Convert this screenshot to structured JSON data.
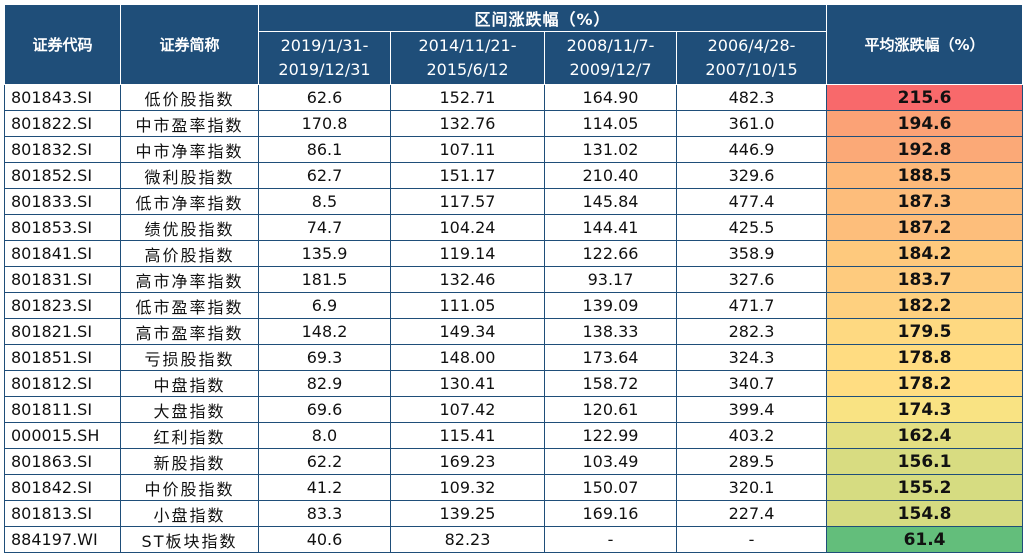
{
  "header": {
    "code": "证券代码",
    "name": "证券简称",
    "group": "区间涨跌幅（%）",
    "avg": "平均涨跌幅（%）",
    "periods": [
      {
        "l1": "2019/1/31-",
        "l2": "2019/12/31"
      },
      {
        "l1": "2014/11/21-",
        "l2": "2015/6/12"
      },
      {
        "l1": "2008/11/7-",
        "l2": "2009/12/7"
      },
      {
        "l1": "2006/4/28-",
        "l2": "2007/10/15"
      }
    ]
  },
  "rows": [
    {
      "code": "801843.SI",
      "name": "低价股指数",
      "p1": "62.6",
      "p2": "152.71",
      "p3": "164.90",
      "p4": "482.3",
      "avg": "215.6",
      "color": "#f8696b"
    },
    {
      "code": "801822.SI",
      "name": "中市盈率指数",
      "p1": "170.8",
      "p2": "132.76",
      "p3": "114.05",
      "p4": "361.0",
      "avg": "194.6",
      "color": "#fba276"
    },
    {
      "code": "801832.SI",
      "name": "中市净率指数",
      "p1": "86.1",
      "p2": "107.11",
      "p3": "131.02",
      "p4": "446.9",
      "avg": "192.8",
      "color": "#fba977"
    },
    {
      "code": "801852.SI",
      "name": "微利股指数",
      "p1": "62.7",
      "p2": "151.17",
      "p3": "210.40",
      "p4": "329.6",
      "avg": "188.5",
      "color": "#fdb97a"
    },
    {
      "code": "801833.SI",
      "name": "低市净率指数",
      "p1": "8.5",
      "p2": "117.57",
      "p3": "145.84",
      "p4": "477.4",
      "avg": "187.3",
      "color": "#fdbd7b"
    },
    {
      "code": "801853.SI",
      "name": "绩优股指数",
      "p1": "74.7",
      "p2": "104.24",
      "p3": "144.41",
      "p4": "425.5",
      "avg": "187.2",
      "color": "#fdbe7b"
    },
    {
      "code": "801841.SI",
      "name": "高价股指数",
      "p1": "135.9",
      "p2": "119.14",
      "p3": "122.66",
      "p4": "358.9",
      "avg": "184.2",
      "color": "#fec97d"
    },
    {
      "code": "801831.SI",
      "name": "高市净率指数",
      "p1": "181.5",
      "p2": "132.46",
      "p3": "93.17",
      "p4": "327.6",
      "avg": "183.7",
      "color": "#fecb7e"
    },
    {
      "code": "801823.SI",
      "name": "低市盈率指数",
      "p1": "6.9",
      "p2": "111.05",
      "p3": "139.09",
      "p4": "471.7",
      "avg": "182.2",
      "color": "#fed07f"
    },
    {
      "code": "801821.SI",
      "name": "高市盈率指数",
      "p1": "148.2",
      "p2": "149.34",
      "p3": "138.33",
      "p4": "282.3",
      "avg": "179.5",
      "color": "#fed981"
    },
    {
      "code": "801851.SI",
      "name": "亏损股指数",
      "p1": "69.3",
      "p2": "148.00",
      "p3": "173.64",
      "p4": "324.3",
      "avg": "178.8",
      "color": "#ffdc81"
    },
    {
      "code": "801812.SI",
      "name": "中盘指数",
      "p1": "82.9",
      "p2": "130.41",
      "p3": "158.72",
      "p4": "340.7",
      "avg": "178.2",
      "color": "#ffdd82"
    },
    {
      "code": "801811.SI",
      "name": "大盘指数",
      "p1": "69.6",
      "p2": "107.42",
      "p3": "120.61",
      "p4": "399.4",
      "avg": "174.3",
      "color": "#f9e383"
    },
    {
      "code": "000015.SH",
      "name": "红利指数",
      "p1": "8.0",
      "p2": "115.41",
      "p3": "122.99",
      "p4": "403.2",
      "avg": "162.4",
      "color": "#e3df82"
    },
    {
      "code": "801863.SI",
      "name": "新股指数",
      "p1": "62.2",
      "p2": "169.23",
      "p3": "103.49",
      "p4": "289.5",
      "avg": "156.1",
      "color": "#d8dc81"
    },
    {
      "code": "801842.SI",
      "name": "中价股指数",
      "p1": "41.2",
      "p2": "109.32",
      "p3": "150.07",
      "p4": "320.1",
      "avg": "155.2",
      "color": "#d6dc81"
    },
    {
      "code": "801813.SI",
      "name": "小盘指数",
      "p1": "83.3",
      "p2": "139.25",
      "p3": "169.16",
      "p4": "227.4",
      "avg": "154.8",
      "color": "#d5db81"
    },
    {
      "code": "884197.WI",
      "name": "ST板块指数",
      "p1": "40.6",
      "p2": "82.23",
      "p3": "-",
      "p4": "-",
      "avg": "61.4",
      "color": "#63be7b"
    }
  ]
}
